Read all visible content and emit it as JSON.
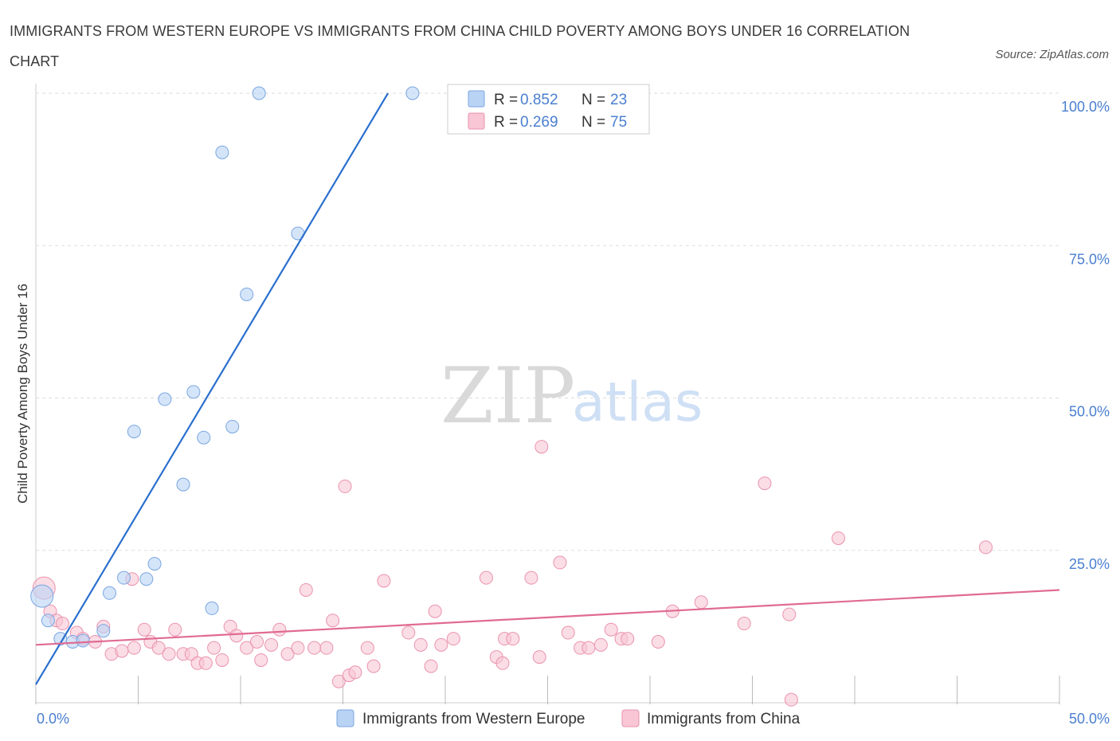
{
  "title": "IMMIGRANTS FROM WESTERN EUROPE VS IMMIGRANTS FROM CHINA CHILD POVERTY AMONG BOYS UNDER 16 CORRELATION CHART",
  "source": "Source: ZipAtlas.com",
  "watermark": {
    "zip": "ZIP",
    "atlas": "atlas"
  },
  "colors": {
    "blue_fill": "#b9d3f5",
    "blue_stroke": "#7aa6e0",
    "blue_line": "#2b6fce",
    "pink_fill": "#f8c6d5",
    "pink_stroke": "#ea93ae",
    "pink_line": "#e06b93",
    "tick_text": "#4a7fd0",
    "grid": "#dddddd"
  },
  "legend": {
    "r_label": "R =",
    "n_label": "N =",
    "entries": [
      {
        "r": "0.852",
        "n": "23"
      },
      {
        "r": "0.269",
        "n": "75"
      }
    ]
  },
  "chart_data": {
    "type": "scatter",
    "xlabel": "",
    "ylabel": "Child Poverty Among Boys Under 16",
    "xlim": [
      0,
      50
    ],
    "ylim": [
      0,
      100
    ],
    "x_tick_labels": [
      "0.0%",
      "50.0%"
    ],
    "y_tick_labels": [
      "25.0%",
      "50.0%",
      "75.0%",
      "100.0%"
    ],
    "y_ticks": [
      25,
      50,
      75,
      100
    ],
    "grid": true,
    "series": [
      {
        "name": "Immigrants from Western Europe",
        "color": "blue",
        "regression": {
          "x0": 0,
          "y0": 3.0,
          "x1": 17.2,
          "y1": 100
        },
        "points": [
          [
            0.3,
            17.5,
            "big"
          ],
          [
            0.6,
            13.5
          ],
          [
            1.2,
            10.5
          ],
          [
            1.8,
            10.0
          ],
          [
            2.3,
            10.2
          ],
          [
            3.3,
            11.8
          ],
          [
            3.6,
            18.0
          ],
          [
            4.3,
            20.5
          ],
          [
            4.8,
            44.5
          ],
          [
            5.4,
            20.3
          ],
          [
            5.8,
            22.8
          ],
          [
            6.3,
            49.8
          ],
          [
            7.2,
            35.8
          ],
          [
            7.7,
            51.0
          ],
          [
            8.2,
            43.5
          ],
          [
            8.6,
            15.5
          ],
          [
            9.1,
            90.3
          ],
          [
            9.6,
            45.3
          ],
          [
            10.3,
            67.0
          ],
          [
            10.9,
            100.0
          ],
          [
            12.8,
            77.0
          ],
          [
            18.4,
            100.0
          ]
        ]
      },
      {
        "name": "Immigrants from China",
        "color": "pink",
        "regression": {
          "x0": 0,
          "y0": 9.5,
          "x1": 50,
          "y1": 18.5
        },
        "points": [
          [
            0.4,
            18.8,
            "big"
          ],
          [
            0.7,
            15.0
          ],
          [
            1.0,
            13.5
          ],
          [
            1.3,
            13.0
          ],
          [
            2.0,
            11.5
          ],
          [
            2.3,
            10.5
          ],
          [
            2.9,
            10.0
          ],
          [
            3.3,
            12.5
          ],
          [
            3.7,
            8.0
          ],
          [
            4.2,
            8.5
          ],
          [
            4.7,
            20.3
          ],
          [
            4.8,
            9.0
          ],
          [
            5.3,
            12.0
          ],
          [
            5.6,
            10.0
          ],
          [
            6.0,
            9.0
          ],
          [
            6.5,
            8.0
          ],
          [
            6.8,
            12.0
          ],
          [
            7.2,
            8.0
          ],
          [
            7.6,
            8.0
          ],
          [
            7.9,
            6.5
          ],
          [
            8.3,
            6.5
          ],
          [
            8.7,
            9.0
          ],
          [
            9.1,
            7.0
          ],
          [
            9.5,
            12.5
          ],
          [
            9.8,
            11.0
          ],
          [
            10.3,
            9.0
          ],
          [
            10.8,
            10.0
          ],
          [
            11.0,
            7.0
          ],
          [
            11.5,
            9.5
          ],
          [
            11.9,
            12.0
          ],
          [
            12.3,
            8.0
          ],
          [
            12.8,
            9.0
          ],
          [
            13.2,
            18.5
          ],
          [
            13.6,
            9.0
          ],
          [
            14.2,
            9.0
          ],
          [
            14.5,
            13.5
          ],
          [
            14.8,
            3.5
          ],
          [
            15.1,
            35.5
          ],
          [
            15.3,
            4.5
          ],
          [
            15.6,
            5.0
          ],
          [
            16.2,
            9.0
          ],
          [
            16.5,
            6.0
          ],
          [
            17.0,
            20.0
          ],
          [
            18.2,
            11.5
          ],
          [
            18.8,
            9.5
          ],
          [
            19.3,
            6.0
          ],
          [
            19.5,
            15.0
          ],
          [
            19.8,
            9.5
          ],
          [
            20.4,
            10.5
          ],
          [
            22.0,
            20.5
          ],
          [
            22.5,
            7.5
          ],
          [
            22.8,
            6.5
          ],
          [
            22.9,
            10.5
          ],
          [
            23.3,
            10.5
          ],
          [
            24.2,
            20.5
          ],
          [
            24.6,
            7.5
          ],
          [
            24.7,
            42.0
          ],
          [
            25.6,
            23.0
          ],
          [
            26.0,
            11.5
          ],
          [
            26.6,
            9.0
          ],
          [
            27.0,
            9.0
          ],
          [
            27.6,
            9.5
          ],
          [
            28.1,
            12.0
          ],
          [
            28.6,
            10.5
          ],
          [
            28.9,
            10.5
          ],
          [
            30.4,
            10.0
          ],
          [
            31.1,
            15.0
          ],
          [
            32.5,
            16.5
          ],
          [
            34.6,
            13.0
          ],
          [
            35.6,
            36.0
          ],
          [
            36.8,
            14.5
          ],
          [
            36.9,
            0.5
          ],
          [
            39.2,
            27.0
          ],
          [
            46.4,
            25.5
          ]
        ]
      }
    ]
  }
}
